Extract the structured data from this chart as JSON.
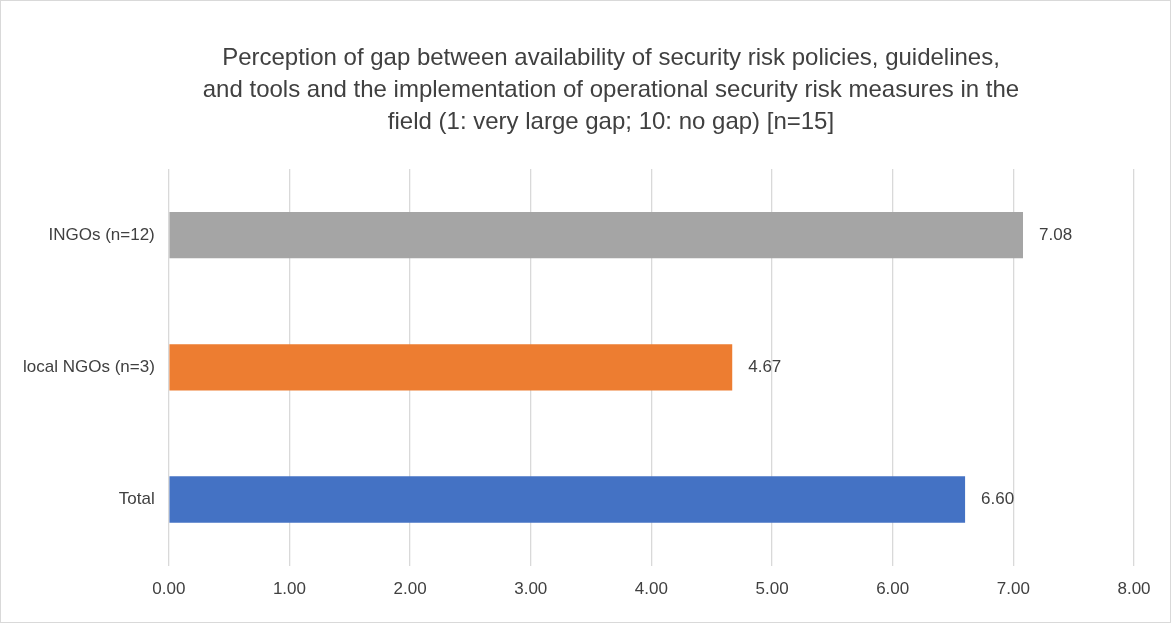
{
  "chart_data": {
    "type": "bar",
    "orientation": "horizontal",
    "title": "Perception of gap between availability of security risk policies, guidelines, and tools and the implementation of operational security risk measures in the field (1: very large gap; 10: no gap) [n=15]",
    "categories": [
      "INGOs (n=12)",
      "local NGOs (n=3)",
      "Total"
    ],
    "values": [
      7.08,
      4.67,
      6.6
    ],
    "value_labels": [
      "7.08",
      "4.67",
      "6.60"
    ],
    "colors": [
      "#a5a5a5",
      "#ed7d31",
      "#4472c4"
    ],
    "xlim": [
      0,
      8
    ],
    "xticks": [
      {
        "value": 0,
        "label": "0.00"
      },
      {
        "value": 1,
        "label": "1.00"
      },
      {
        "value": 2,
        "label": "2.00"
      },
      {
        "value": 3,
        "label": "3.00"
      },
      {
        "value": 4,
        "label": "4.00"
      },
      {
        "value": 5,
        "label": "5.00"
      },
      {
        "value": 6,
        "label": "6.00"
      },
      {
        "value": 7,
        "label": "7.00"
      },
      {
        "value": 8,
        "label": "8.00"
      }
    ],
    "grid": "x",
    "legend": false
  }
}
